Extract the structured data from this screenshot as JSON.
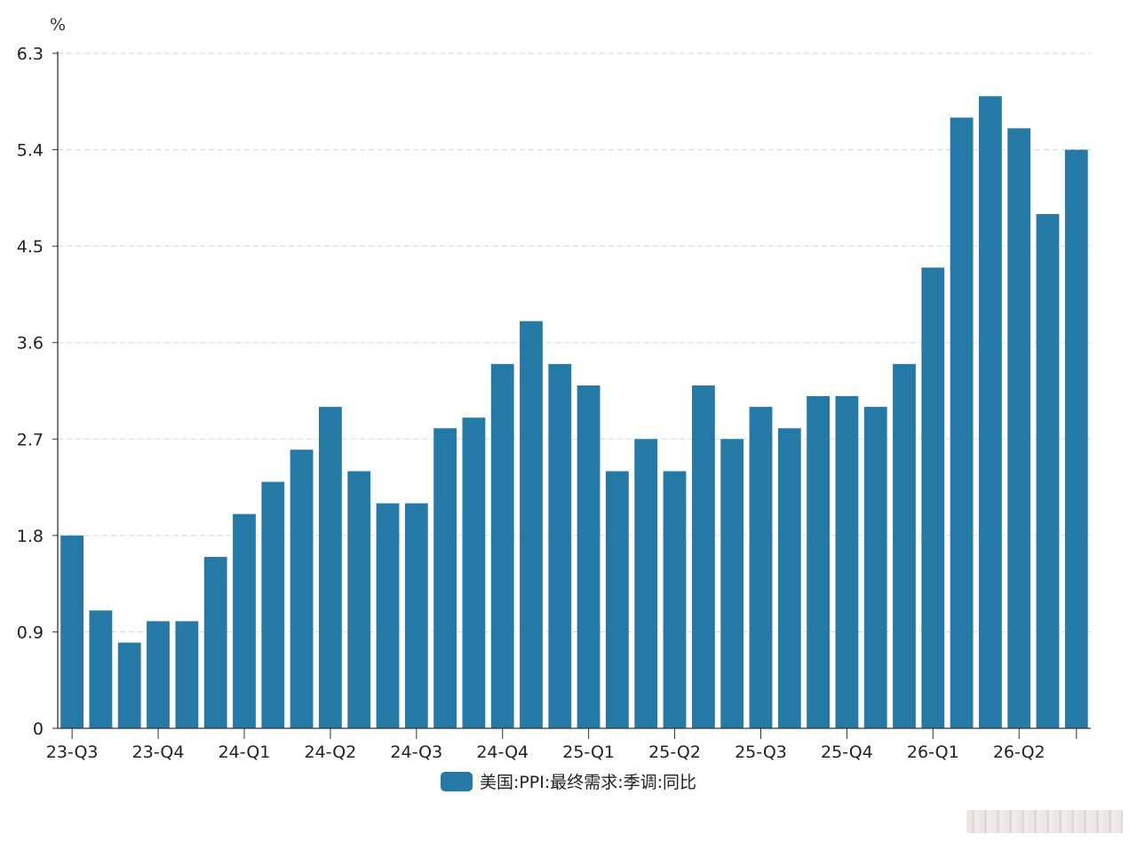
{
  "chart_data": {
    "type": "bar",
    "title": "",
    "xlabel": "",
    "ylabel": "%",
    "ylim": [
      0,
      6.3
    ],
    "yticks": [
      "0",
      "0.9",
      "1.8",
      "2.7",
      "3.6",
      "4.5",
      "5.4",
      "6.3"
    ],
    "grid": true,
    "legend_position": "bottom-center",
    "series": [
      {
        "name": "美国:PPI:最终需求:季调:同比",
        "color": "#2479a6",
        "values": [
          1.8,
          1.1,
          0.8,
          1.0,
          1.0,
          1.6,
          2.0,
          2.3,
          2.6,
          3.0,
          2.4,
          2.1,
          2.1,
          2.8,
          2.9,
          3.4,
          3.8,
          3.4,
          3.2,
          2.4,
          2.7,
          2.4,
          3.2,
          2.7,
          3.0,
          2.8,
          3.1,
          3.1,
          3.0,
          3.4,
          4.3,
          5.7,
          5.9,
          5.6,
          4.8,
          5.4
        ]
      }
    ],
    "x_tick_labels": [
      "23-Q3",
      "23-Q4",
      "24-Q1",
      "24-Q2",
      "24-Q3",
      "24-Q4",
      "25-Q1",
      "25-Q2",
      "25-Q3",
      "25-Q4",
      "26-Q1",
      "26-Q2"
    ],
    "x_tick_positions": [
      0,
      3,
      6,
      9,
      12,
      15,
      18,
      21,
      24,
      27,
      30,
      33
    ]
  },
  "legend": {
    "label": "美国:PPI:最终需求:季调:同比",
    "color": "#2479a6"
  }
}
